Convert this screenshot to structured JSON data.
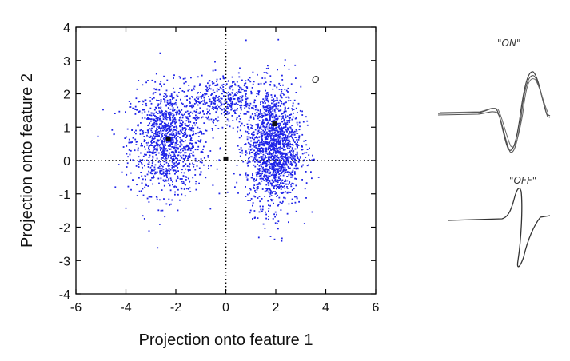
{
  "chart_data": {
    "type": "scatter",
    "title": "",
    "xlabel": "Projection onto feature 1",
    "ylabel": "Projection onto feature 2",
    "xlim": [
      -6,
      6
    ],
    "ylim": [
      -4,
      4
    ],
    "xticks": [
      -6,
      -4,
      -2,
      0,
      2,
      4,
      6
    ],
    "yticks": [
      -4,
      -3,
      -2,
      -1,
      0,
      1,
      2,
      3,
      4
    ],
    "grid": false,
    "reference_lines": {
      "x": 0,
      "y": 0,
      "style": "dotted"
    },
    "point_color": "#1f24e8",
    "clusters": [
      {
        "center": [
          -2.3,
          0.6
        ],
        "spread": [
          0.75,
          0.8
        ],
        "approx_points": 2200
      },
      {
        "center": [
          1.9,
          0.4
        ],
        "spread": [
          0.55,
          0.9
        ],
        "approx_points": 3000
      },
      {
        "center": [
          -0.1,
          1.8
        ],
        "spread": [
          0.8,
          0.35
        ],
        "approx_points": 700
      }
    ],
    "markers": [
      {
        "x": -2.3,
        "y": 0.65
      },
      {
        "x": 1.95,
        "y": 1.1
      },
      {
        "x": 0.0,
        "y": 0.05
      }
    ]
  },
  "annotations": {
    "on_label": "\"ON\"",
    "off_label": "\"OFF\"",
    "circle_mark": "O"
  }
}
